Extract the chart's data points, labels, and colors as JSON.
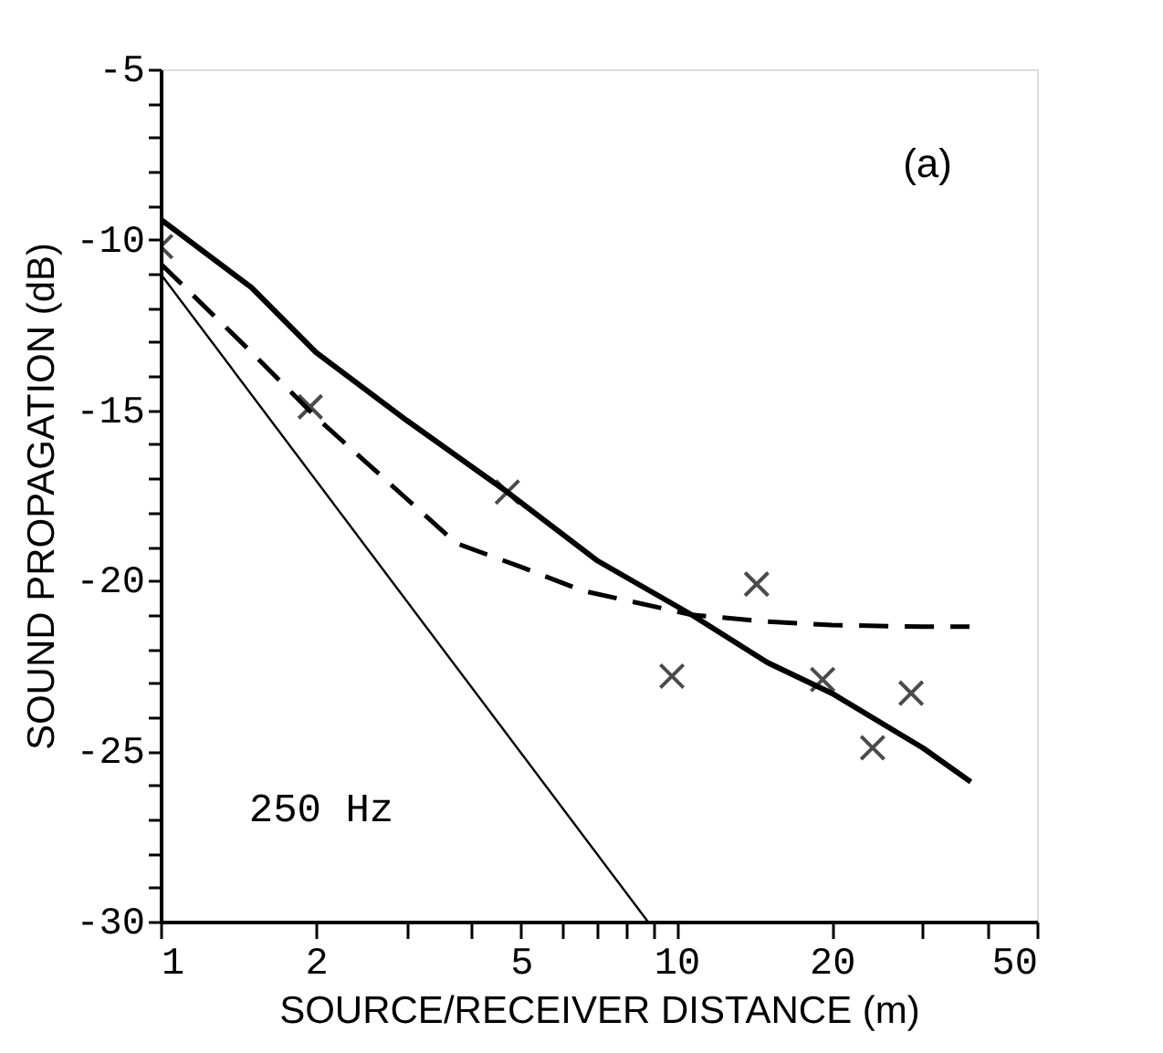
{
  "chart_data": {
    "type": "line",
    "xlabel": "SOURCE/RECEIVER DISTANCE (m)",
    "ylabel": "SOUND PROPAGATION (dB)",
    "annotations": [
      "(a)",
      "250 Hz"
    ],
    "log": "x",
    "grid": false,
    "xlim": [
      1,
      50
    ],
    "ylim": [
      -30,
      -5
    ],
    "xticks": [
      1,
      2,
      {
        "value": 3,
        "label": null
      },
      {
        "value": 4,
        "label": null
      },
      5,
      {
        "value": 6,
        "label": null
      },
      {
        "value": 7,
        "label": null
      },
      {
        "value": 8,
        "label": null
      },
      {
        "value": 9,
        "label": null
      },
      10,
      20,
      {
        "value": 30,
        "label": null
      },
      {
        "value": 40,
        "label": null
      },
      50
    ],
    "yticks": [
      -30,
      {
        "value": -29,
        "label": null
      },
      {
        "value": -28,
        "label": null
      },
      {
        "value": -27,
        "label": null
      },
      {
        "value": -26,
        "label": null
      },
      -25,
      {
        "value": -24,
        "label": null
      },
      {
        "value": -23,
        "label": null
      },
      {
        "value": -22,
        "label": null
      },
      {
        "value": -21,
        "label": null
      },
      -20,
      {
        "value": -19,
        "label": null
      },
      {
        "value": -18,
        "label": null
      },
      {
        "value": -17,
        "label": null
      },
      {
        "value": -16,
        "label": null
      },
      -15,
      {
        "value": -14,
        "label": null
      },
      {
        "value": -13,
        "label": null
      },
      {
        "value": -12,
        "label": null
      },
      {
        "value": -11,
        "label": null
      },
      -10,
      {
        "value": -9,
        "label": null
      },
      {
        "value": -8,
        "label": null
      },
      {
        "value": -7,
        "label": null
      },
      {
        "value": -6,
        "label": null
      },
      -5
    ],
    "series": [
      {
        "color": "#000000",
        "line_style": "solid",
        "marker": "none",
        "x": [
          1,
          1.5,
          2,
          3,
          4.7,
          7,
          10.7,
          15,
          20,
          30,
          37.2
        ],
        "values": [
          -9.4,
          -11.4,
          -13.3,
          -15.3,
          -17.4,
          -19.4,
          -21.0,
          -22.4,
          -23.3,
          -24.9,
          -25.9
        ]
      },
      {
        "color": "#000000",
        "line_style": "dashed",
        "marker": "none",
        "x": [
          1,
          1.5,
          2,
          3,
          3.74,
          5,
          6.6,
          10.7,
          15,
          20,
          30,
          37
        ],
        "values": [
          -10.7,
          -13.3,
          -15.2,
          -17.6,
          -18.9,
          -19.6,
          -20.3,
          -21.0,
          -21.2,
          -21.3,
          -21.35,
          -21.35
        ]
      },
      {
        "color": "#000000",
        "line_style": "solid",
        "marker": "none",
        "x": [
          1,
          8.8
        ],
        "values": [
          -11,
          -30
        ]
      },
      {
        "type": "scatter",
        "color": "#000000",
        "marker": "cross",
        "x": [
          1,
          1.95,
          4.7,
          9.8,
          14.3,
          19.2,
          24,
          28.5
        ],
        "values": [
          -10.2,
          -14.9,
          -17.4,
          -22.8,
          -20.1,
          -22.9,
          -24.9,
          -23.3
        ]
      }
    ]
  }
}
